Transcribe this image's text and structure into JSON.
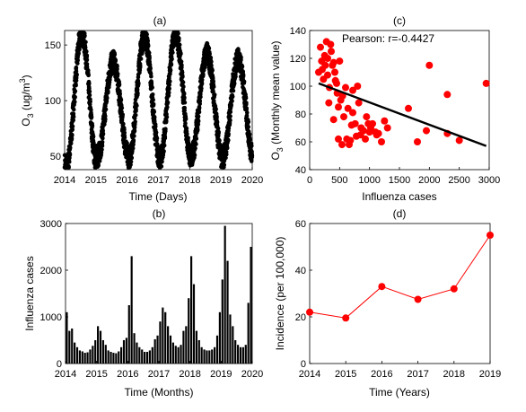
{
  "chart_data": [
    {
      "panel": "(a)",
      "type": "scatter",
      "title": "(a)",
      "xlabel": "Time (Days)",
      "ylabel_main": "O",
      "ylabel_sub": "3",
      "ylabel_rest": " (ug/m",
      "ylabel_sup": "3",
      "ylabel_end": ")",
      "xlim": [
        2014,
        2020
      ],
      "ylim": [
        38,
        163
      ],
      "x_ticks": [
        2014,
        2015,
        2016,
        2017,
        2018,
        2019,
        2020
      ],
      "y_ticks": [
        50,
        100,
        150
      ],
      "marker_color": "#000000",
      "series_description_values": {
        "period_years": 1.0,
        "mean": 96,
        "amplitude": 36,
        "peak_phase_year_fraction": 0.45,
        "yearly_peaks": [
          {
            "x": 2014.5,
            "y": 160
          },
          {
            "x": 2015.5,
            "y": 135
          },
          {
            "x": 2016.5,
            "y": 158
          },
          {
            "x": 2017.5,
            "y": 160
          },
          {
            "x": 2018.5,
            "y": 142
          },
          {
            "x": 2019.5,
            "y": 137
          }
        ],
        "yearly_troughs": [
          {
            "x": 2014.05,
            "y": 40
          },
          {
            "x": 2015.05,
            "y": 52
          },
          {
            "x": 2016.05,
            "y": 50
          },
          {
            "x": 2017.05,
            "y": 48
          },
          {
            "x": 2018.05,
            "y": 50
          },
          {
            "x": 2019.05,
            "y": 52
          },
          {
            "x": 2019.95,
            "y": 48
          }
        ]
      }
    },
    {
      "panel": "(b)",
      "type": "bar",
      "title": "(b)",
      "xlabel": "Time (Months)",
      "ylabel": "Influenza cases",
      "xlim": [
        2014,
        2020
      ],
      "ylim": [
        0,
        3000
      ],
      "x_ticks": [
        2014,
        2015,
        2016,
        2017,
        2018,
        2019,
        2020
      ],
      "y_ticks": [
        0,
        1000,
        2000,
        3000
      ],
      "bar_color": "#000000",
      "x_start": 2014,
      "months_per_year": 12,
      "values": [
        1100,
        700,
        750,
        450,
        350,
        280,
        260,
        230,
        240,
        300,
        380,
        500,
        800,
        700,
        500,
        400,
        280,
        250,
        230,
        220,
        260,
        350,
        500,
        550,
        1250,
        2300,
        650,
        450,
        350,
        300,
        250,
        250,
        280,
        350,
        520,
        600,
        900,
        1200,
        1100,
        800,
        600,
        450,
        380,
        350,
        400,
        700,
        800,
        1400,
        2300,
        1700,
        700,
        500,
        350,
        300,
        280,
        280,
        300,
        350,
        600,
        1100,
        1800,
        2950,
        2200,
        1050,
        800,
        500,
        400,
        350,
        350,
        400,
        1300,
        2500
      ]
    },
    {
      "panel": "(c)",
      "type": "scatter",
      "title": "(c)",
      "xlabel": "Influenza cases",
      "ylabel_main": "O",
      "ylabel_sub": "3",
      "ylabel_rest": " (Monthly mean value)",
      "xlim": [
        0,
        3000
      ],
      "ylim": [
        40,
        140
      ],
      "x_ticks": [
        0,
        500,
        1000,
        1500,
        2000,
        2500,
        3000
      ],
      "y_ticks": [
        40,
        60,
        80,
        100,
        120,
        140
      ],
      "annotation": "Pearson: r=-0.4427",
      "marker_color": "#ff0000",
      "fit_line": {
        "x": [
          150,
          2950
        ],
        "y": [
          102,
          57
        ],
        "color": "#000000"
      },
      "points": [
        [
          150,
          110
        ],
        [
          180,
          128
        ],
        [
          200,
          118
        ],
        [
          210,
          112
        ],
        [
          230,
          105
        ],
        [
          250,
          122
        ],
        [
          260,
          115
        ],
        [
          280,
          132
        ],
        [
          300,
          120
        ],
        [
          300,
          108
        ],
        [
          320,
          88
        ],
        [
          330,
          99
        ],
        [
          350,
          130
        ],
        [
          360,
          125
        ],
        [
          380,
          115
        ],
        [
          400,
          117
        ],
        [
          420,
          110
        ],
        [
          430,
          104
        ],
        [
          450,
          102
        ],
        [
          460,
          95
        ],
        [
          480,
          85
        ],
        [
          500,
          118
        ],
        [
          520,
          90
        ],
        [
          550,
          93
        ],
        [
          570,
          78
        ],
        [
          600,
          99
        ],
        [
          620,
          62
        ],
        [
          640,
          84
        ],
        [
          660,
          58
        ],
        [
          700,
          72
        ],
        [
          720,
          97
        ],
        [
          760,
          73
        ],
        [
          780,
          64
        ],
        [
          800,
          100
        ],
        [
          820,
          88
        ],
        [
          850,
          65
        ],
        [
          860,
          70
        ],
        [
          900,
          68
        ],
        [
          930,
          62
        ],
        [
          950,
          78
        ],
        [
          980,
          73
        ],
        [
          1000,
          67
        ],
        [
          1020,
          70
        ],
        [
          1050,
          73
        ],
        [
          1100,
          67
        ],
        [
          1120,
          65
        ],
        [
          1150,
          66
        ],
        [
          1200,
          60
        ],
        [
          1250,
          75
        ],
        [
          1300,
          70
        ],
        [
          1650,
          84
        ],
        [
          1800,
          60
        ],
        [
          1950,
          68
        ],
        [
          2000,
          115
        ],
        [
          2300,
          94
        ],
        [
          2300,
          66
        ],
        [
          2500,
          61
        ],
        [
          2950,
          102
        ],
        [
          480,
          62
        ],
        [
          400,
          76
        ],
        [
          540,
          58
        ],
        [
          680,
          61
        ],
        [
          720,
          81
        ]
      ]
    },
    {
      "panel": "(d)",
      "type": "line",
      "title": "(d)",
      "xlabel": "Time (Years)",
      "ylabel": "Incidence (per 100,000)",
      "xlim": [
        2014,
        2019
      ],
      "ylim": [
        0,
        60
      ],
      "x_ticks": [
        2014,
        2015,
        2016,
        2017,
        2018,
        2019
      ],
      "y_ticks": [
        0,
        20,
        40,
        60
      ],
      "line_color": "#ff0000",
      "x": [
        2014,
        2015,
        2016,
        2017,
        2018,
        2019
      ],
      "y": [
        22,
        19.5,
        33,
        27.5,
        32,
        55
      ]
    }
  ]
}
